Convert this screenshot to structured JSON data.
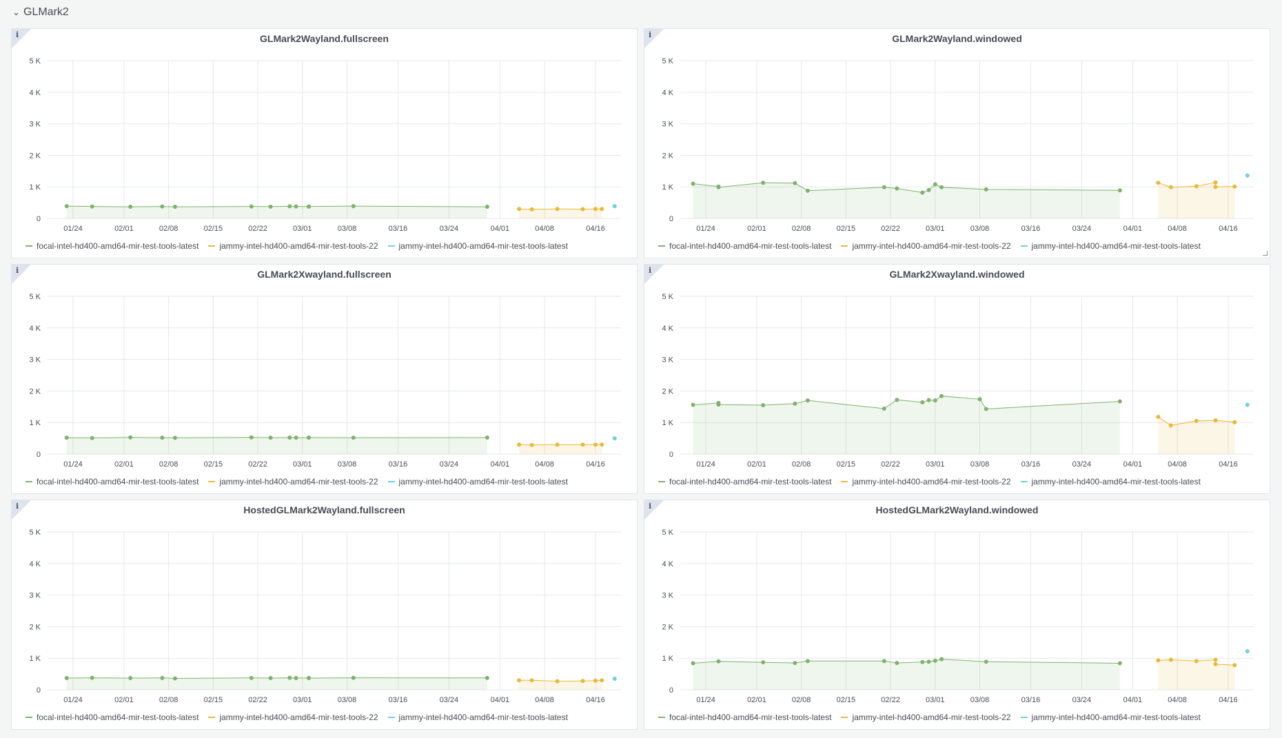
{
  "row": {
    "title": "GLMark2",
    "chevron": "chevron-down-icon"
  },
  "info_icon": "i",
  "colors": {
    "focal": "#7eb26d",
    "jammy22": "#eab839",
    "jammylatest": "#6ed0e0"
  },
  "chart_data": [
    {
      "type": "line",
      "title": "GLMark2Wayland.fullscreen",
      "xlabel": "",
      "ylabel": "",
      "ylim": [
        0,
        5000
      ],
      "yticks": [
        "0",
        "1 K",
        "2 K",
        "3 K",
        "4 K",
        "5 K"
      ],
      "xlim": [
        "2022-01-20",
        "2022-04-20"
      ],
      "xticks": [
        "01/24",
        "02/01",
        "02/08",
        "02/15",
        "02/22",
        "03/01",
        "03/08",
        "03/16",
        "03/24",
        "04/01",
        "04/08",
        "04/16"
      ],
      "grid": true,
      "legend_position": "bottom",
      "series": [
        {
          "name": "focal-intel-hd400-amd64-mir-test-tools-latest",
          "color": "#7eb26d",
          "x": [
            "2022-01-23",
            "2022-01-27",
            "2022-02-02",
            "2022-02-07",
            "2022-02-09",
            "2022-02-21",
            "2022-02-24",
            "2022-02-27",
            "2022-02-28",
            "2022-03-02",
            "2022-03-02",
            "2022-03-09",
            "2022-03-30"
          ],
          "y": [
            390,
            380,
            370,
            380,
            370,
            380,
            375,
            385,
            380,
            375,
            380,
            390,
            370
          ]
        },
        {
          "name": "jammy-intel-hd400-amd64-mir-test-tools-22",
          "color": "#eab839",
          "x": [
            "2022-04-04",
            "2022-04-06",
            "2022-04-10",
            "2022-04-14",
            "2022-04-16",
            "2022-04-17"
          ],
          "y": [
            300,
            290,
            300,
            295,
            300,
            300
          ]
        },
        {
          "name": "jammy-intel-hd400-amd64-mir-test-tools-latest",
          "color": "#6ed0e0",
          "x": [
            "2022-04-19"
          ],
          "y": [
            390
          ]
        }
      ]
    },
    {
      "type": "line",
      "title": "GLMark2Wayland.windowed",
      "xlabel": "",
      "ylabel": "",
      "ylim": [
        0,
        5000
      ],
      "yticks": [
        "0",
        "1 K",
        "2 K",
        "3 K",
        "4 K",
        "5 K"
      ],
      "xlim": [
        "2022-01-20",
        "2022-04-20"
      ],
      "xticks": [
        "01/24",
        "02/01",
        "02/08",
        "02/15",
        "02/22",
        "03/01",
        "03/08",
        "03/16",
        "03/24",
        "04/01",
        "04/08",
        "04/16"
      ],
      "grid": true,
      "legend_position": "bottom",
      "series": [
        {
          "name": "focal-intel-hd400-amd64-mir-test-tools-latest",
          "color": "#7eb26d",
          "x": [
            "2022-01-22",
            "2022-01-26",
            "2022-01-26",
            "2022-02-02",
            "2022-02-07",
            "2022-02-09",
            "2022-02-21",
            "2022-02-23",
            "2022-02-27",
            "2022-02-28",
            "2022-03-01",
            "2022-03-02",
            "2022-03-09",
            "2022-03-30"
          ],
          "y": [
            1100,
            1010,
            990,
            1130,
            1120,
            880,
            990,
            950,
            820,
            900,
            1080,
            990,
            920,
            890
          ]
        },
        {
          "name": "jammy-intel-hd400-amd64-mir-test-tools-22",
          "color": "#eab839",
          "x": [
            "2022-04-05",
            "2022-04-07",
            "2022-04-11",
            "2022-04-14",
            "2022-04-14",
            "2022-04-17"
          ],
          "y": [
            1130,
            990,
            1020,
            1140,
            1000,
            1010
          ]
        },
        {
          "name": "jammy-intel-hd400-amd64-mir-test-tools-latest",
          "color": "#6ed0e0",
          "x": [
            "2022-04-19"
          ],
          "y": [
            1360
          ]
        }
      ]
    },
    {
      "type": "line",
      "title": "GLMark2Xwayland.fullscreen",
      "xlabel": "",
      "ylabel": "",
      "ylim": [
        0,
        5000
      ],
      "yticks": [
        "0",
        "1 K",
        "2 K",
        "3 K",
        "4 K",
        "5 K"
      ],
      "xlim": [
        "2022-01-20",
        "2022-04-20"
      ],
      "xticks": [
        "01/24",
        "02/01",
        "02/08",
        "02/15",
        "02/22",
        "03/01",
        "03/08",
        "03/16",
        "03/24",
        "04/01",
        "04/08",
        "04/16"
      ],
      "grid": true,
      "legend_position": "bottom",
      "series": [
        {
          "name": "focal-intel-hd400-amd64-mir-test-tools-latest",
          "color": "#7eb26d",
          "x": [
            "2022-01-23",
            "2022-01-27",
            "2022-02-02",
            "2022-02-07",
            "2022-02-09",
            "2022-02-21",
            "2022-02-24",
            "2022-02-27",
            "2022-02-28",
            "2022-03-02",
            "2022-03-02",
            "2022-03-09",
            "2022-03-30"
          ],
          "y": [
            520,
            510,
            530,
            520,
            515,
            530,
            520,
            525,
            520,
            520,
            525,
            520,
            525
          ]
        },
        {
          "name": "jammy-intel-hd400-amd64-mir-test-tools-22",
          "color": "#eab839",
          "x": [
            "2022-04-04",
            "2022-04-06",
            "2022-04-10",
            "2022-04-14",
            "2022-04-16",
            "2022-04-17"
          ],
          "y": [
            300,
            290,
            300,
            300,
            300,
            300
          ]
        },
        {
          "name": "jammy-intel-hd400-amd64-mir-test-tools-latest",
          "color": "#6ed0e0",
          "x": [
            "2022-04-19"
          ],
          "y": [
            500
          ]
        }
      ]
    },
    {
      "type": "line",
      "title": "GLMark2Xwayland.windowed",
      "xlabel": "",
      "ylabel": "",
      "ylim": [
        0,
        5000
      ],
      "yticks": [
        "0",
        "1 K",
        "2 K",
        "3 K",
        "4 K",
        "5 K"
      ],
      "xlim": [
        "2022-01-20",
        "2022-04-20"
      ],
      "xticks": [
        "01/24",
        "02/01",
        "02/08",
        "02/15",
        "02/22",
        "03/01",
        "03/08",
        "03/16",
        "03/24",
        "04/01",
        "04/08",
        "04/16"
      ],
      "grid": true,
      "legend_position": "bottom",
      "series": [
        {
          "name": "focal-intel-hd400-amd64-mir-test-tools-latest",
          "color": "#7eb26d",
          "x": [
            "2022-01-22",
            "2022-01-26",
            "2022-01-26",
            "2022-02-02",
            "2022-02-07",
            "2022-02-09",
            "2022-02-21",
            "2022-02-23",
            "2022-02-27",
            "2022-02-28",
            "2022-03-01",
            "2022-03-02",
            "2022-03-08",
            "2022-03-09",
            "2022-03-30"
          ],
          "y": [
            1560,
            1620,
            1570,
            1550,
            1600,
            1700,
            1440,
            1720,
            1640,
            1710,
            1700,
            1840,
            1740,
            1430,
            1670
          ]
        },
        {
          "name": "jammy-intel-hd400-amd64-mir-test-tools-22",
          "color": "#eab839",
          "x": [
            "2022-04-05",
            "2022-04-07",
            "2022-04-11",
            "2022-04-14",
            "2022-04-17"
          ],
          "y": [
            1180,
            910,
            1050,
            1070,
            1010
          ]
        },
        {
          "name": "jammy-intel-hd400-amd64-mir-test-tools-latest",
          "color": "#6ed0e0",
          "x": [
            "2022-04-19"
          ],
          "y": [
            1560
          ]
        }
      ]
    },
    {
      "type": "line",
      "title": "HostedGLMark2Wayland.fullscreen",
      "xlabel": "",
      "ylabel": "",
      "ylim": [
        0,
        5000
      ],
      "yticks": [
        "0",
        "1 K",
        "2 K",
        "3 K",
        "4 K",
        "5 K"
      ],
      "xlim": [
        "2022-01-20",
        "2022-04-20"
      ],
      "xticks": [
        "01/24",
        "02/01",
        "02/08",
        "02/15",
        "02/22",
        "03/01",
        "03/08",
        "03/16",
        "03/24",
        "04/01",
        "04/08",
        "04/16"
      ],
      "grid": true,
      "legend_position": "bottom",
      "series": [
        {
          "name": "focal-intel-hd400-amd64-mir-test-tools-latest",
          "color": "#7eb26d",
          "x": [
            "2022-01-23",
            "2022-01-27",
            "2022-02-02",
            "2022-02-07",
            "2022-02-09",
            "2022-02-21",
            "2022-02-24",
            "2022-02-27",
            "2022-02-28",
            "2022-03-02",
            "2022-03-02",
            "2022-03-09",
            "2022-03-30"
          ],
          "y": [
            370,
            380,
            370,
            375,
            360,
            375,
            370,
            380,
            370,
            375,
            370,
            380,
            375
          ]
        },
        {
          "name": "jammy-intel-hd400-amd64-mir-test-tools-22",
          "color": "#eab839",
          "x": [
            "2022-04-04",
            "2022-04-06",
            "2022-04-10",
            "2022-04-14",
            "2022-04-16",
            "2022-04-17"
          ],
          "y": [
            300,
            300,
            270,
            280,
            290,
            300
          ]
        },
        {
          "name": "jammy-intel-hd400-amd64-mir-test-tools-latest",
          "color": "#6ed0e0",
          "x": [
            "2022-04-19"
          ],
          "y": [
            350
          ]
        }
      ]
    },
    {
      "type": "line",
      "title": "HostedGLMark2Wayland.windowed",
      "xlabel": "",
      "ylabel": "",
      "ylim": [
        0,
        5000
      ],
      "yticks": [
        "0",
        "1 K",
        "2 K",
        "3 K",
        "4 K",
        "5 K"
      ],
      "xlim": [
        "2022-01-20",
        "2022-04-20"
      ],
      "xticks": [
        "01/24",
        "02/01",
        "02/08",
        "02/15",
        "02/22",
        "03/01",
        "03/08",
        "03/16",
        "03/24",
        "04/01",
        "04/08",
        "04/16"
      ],
      "grid": true,
      "legend_position": "bottom",
      "series": [
        {
          "name": "focal-intel-hd400-amd64-mir-test-tools-latest",
          "color": "#7eb26d",
          "x": [
            "2022-01-22",
            "2022-01-26",
            "2022-02-02",
            "2022-02-07",
            "2022-02-09",
            "2022-02-21",
            "2022-02-23",
            "2022-02-27",
            "2022-02-28",
            "2022-03-01",
            "2022-03-02",
            "2022-03-09",
            "2022-03-30"
          ],
          "y": [
            840,
            900,
            870,
            850,
            910,
            910,
            850,
            880,
            890,
            920,
            970,
            890,
            840
          ]
        },
        {
          "name": "jammy-intel-hd400-amd64-mir-test-tools-22",
          "color": "#eab839",
          "x": [
            "2022-04-05",
            "2022-04-07",
            "2022-04-11",
            "2022-04-14",
            "2022-04-14",
            "2022-04-17"
          ],
          "y": [
            930,
            950,
            910,
            950,
            810,
            780
          ]
        },
        {
          "name": "jammy-intel-hd400-amd64-mir-test-tools-latest",
          "color": "#6ed0e0",
          "x": [
            "2022-04-19"
          ],
          "y": [
            1220
          ]
        }
      ]
    }
  ]
}
